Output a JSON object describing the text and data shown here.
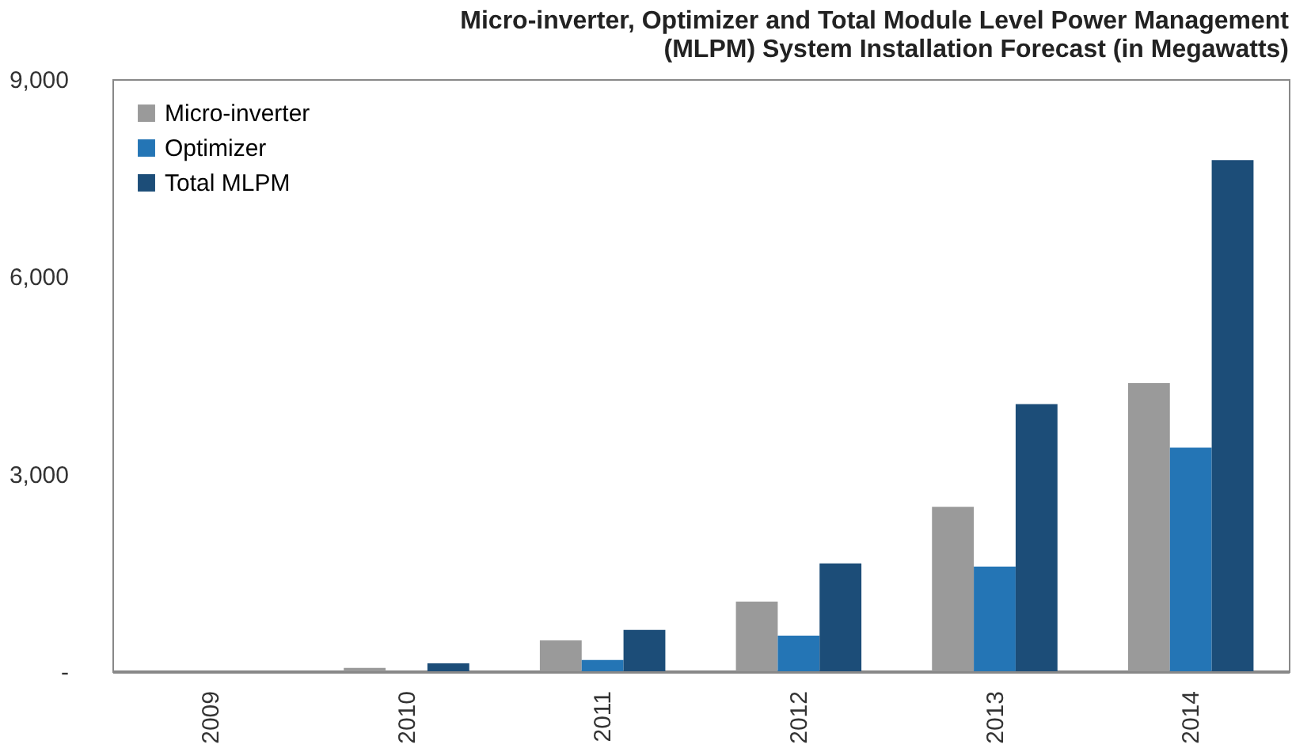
{
  "chart_data": {
    "type": "bar",
    "title": "Micro-inverter, Optimizer and Total Module Level Power Management\n(MLPM) System Installation Forecast (in Megawatts)",
    "categories": [
      "2009",
      "2010",
      "2011",
      "2012",
      "2013",
      "2014"
    ],
    "series": [
      {
        "name": "Micro-inverter",
        "color": "#9a9a9a",
        "values": [
          null,
          50,
          470,
          1060,
          2500,
          4380
        ]
      },
      {
        "name": "Optimizer",
        "color": "#2475b5",
        "values": [
          null,
          null,
          170,
          540,
          1590,
          3400
        ]
      },
      {
        "name": "Total MLPM",
        "color": "#1c4d78",
        "values": [
          null,
          120,
          630,
          1640,
          4060,
          7770
        ]
      }
    ],
    "ylim": [
      0,
      9000
    ],
    "yticks": [
      {
        "value": 0,
        "label": "-"
      },
      {
        "value": 3000,
        "label": "3,000"
      },
      {
        "value": 6000,
        "label": "6,000"
      },
      {
        "value": 9000,
        "label": "9,000"
      }
    ],
    "grid": false,
    "legend": "top left"
  }
}
